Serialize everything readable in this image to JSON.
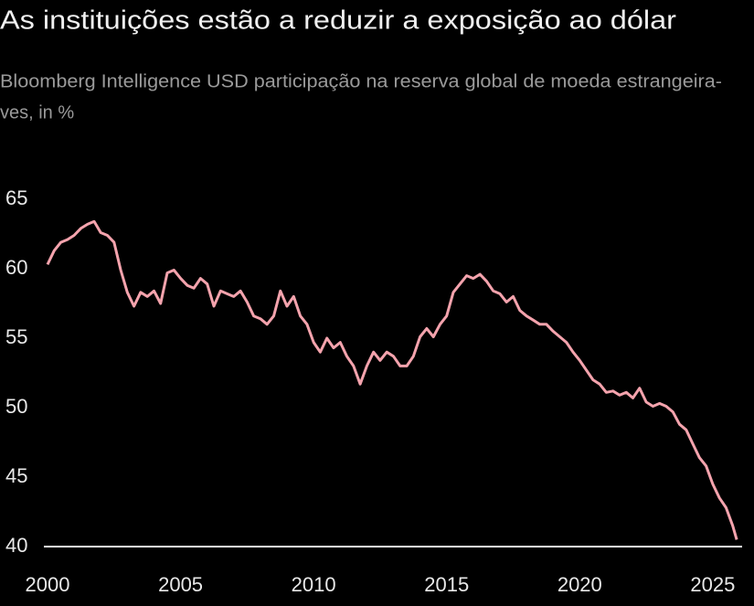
{
  "chart_data": {
    "type": "line",
    "title": "As instituições estão a reduzir a exposição ao dólar",
    "subtitle": [
      "Bloomberg Intelligence USD participação na reserva global de moeda estrangeira-",
      "ves, in %"
    ],
    "x": [
      2000.0,
      2000.25,
      2000.5,
      2000.75,
      2001.0,
      2001.25,
      2001.5,
      2001.75,
      2002.0,
      2002.25,
      2002.5,
      2002.75,
      2003.0,
      2003.25,
      2003.5,
      2003.75,
      2004.0,
      2004.25,
      2004.5,
      2004.75,
      2005.0,
      2005.25,
      2005.5,
      2005.75,
      2006.0,
      2006.25,
      2006.5,
      2006.75,
      2007.0,
      2007.25,
      2007.5,
      2007.75,
      2008.0,
      2008.25,
      2008.5,
      2008.75,
      2009.0,
      2009.25,
      2009.5,
      2009.75,
      2010.0,
      2010.25,
      2010.5,
      2010.75,
      2011.0,
      2011.25,
      2011.5,
      2011.75,
      2012.0,
      2012.25,
      2012.5,
      2012.75,
      2013.0,
      2013.25,
      2013.5,
      2013.75,
      2014.0,
      2014.25,
      2014.5,
      2014.75,
      2015.0,
      2015.25,
      2015.5,
      2015.75,
      2016.0,
      2016.25,
      2016.5,
      2016.75,
      2017.0,
      2017.25,
      2017.5,
      2017.75,
      2018.0,
      2018.25,
      2018.5,
      2018.75,
      2019.0,
      2019.25,
      2019.5,
      2019.75,
      2020.0,
      2020.25,
      2020.5,
      2020.75,
      2021.0,
      2021.25,
      2021.5,
      2021.75,
      2022.0,
      2022.25,
      2022.5,
      2022.75,
      2023.0,
      2023.25,
      2023.5,
      2023.75,
      2024.0,
      2024.25,
      2024.5,
      2024.75,
      2025.0,
      2025.25,
      2025.5,
      2025.75,
      2025.9
    ],
    "values": [
      60.3,
      61.3,
      61.9,
      62.1,
      62.4,
      62.9,
      63.2,
      63.4,
      62.6,
      62.4,
      61.9,
      59.9,
      58.3,
      57.3,
      58.3,
      58.0,
      58.4,
      57.5,
      59.7,
      59.9,
      59.3,
      58.8,
      58.6,
      59.3,
      58.9,
      57.3,
      58.4,
      58.2,
      58.0,
      58.4,
      57.6,
      56.6,
      56.4,
      56.0,
      56.6,
      58.4,
      57.3,
      58.0,
      56.6,
      56.0,
      54.7,
      54.0,
      55.0,
      54.3,
      54.7,
      53.7,
      53.0,
      51.7,
      53.0,
      54.0,
      53.4,
      54.0,
      53.7,
      53.0,
      53.0,
      53.7,
      55.1,
      55.7,
      55.1,
      56.0,
      56.6,
      58.3,
      58.9,
      59.5,
      59.3,
      59.6,
      59.1,
      58.4,
      58.2,
      57.6,
      58.0,
      57.0,
      56.6,
      56.3,
      56.0,
      56.0,
      55.5,
      55.1,
      54.7,
      54.0,
      53.4,
      52.7,
      52.0,
      51.7,
      51.1,
      51.2,
      50.9,
      51.1,
      50.7,
      51.4,
      50.4,
      50.1,
      50.3,
      50.1,
      49.7,
      48.8,
      48.4,
      47.4,
      46.4,
      45.8,
      44.5,
      43.5,
      42.8,
      41.5,
      40.5
    ],
    "color": "#f4a3ad",
    "xlim": [
      2000,
      2026
    ],
    "xticks": [
      2000,
      2005,
      2010,
      2015,
      2020,
      2025
    ],
    "ylim": [
      40,
      65
    ],
    "yticks": [
      40,
      45,
      50,
      55,
      60,
      65
    ],
    "grid": false
  }
}
